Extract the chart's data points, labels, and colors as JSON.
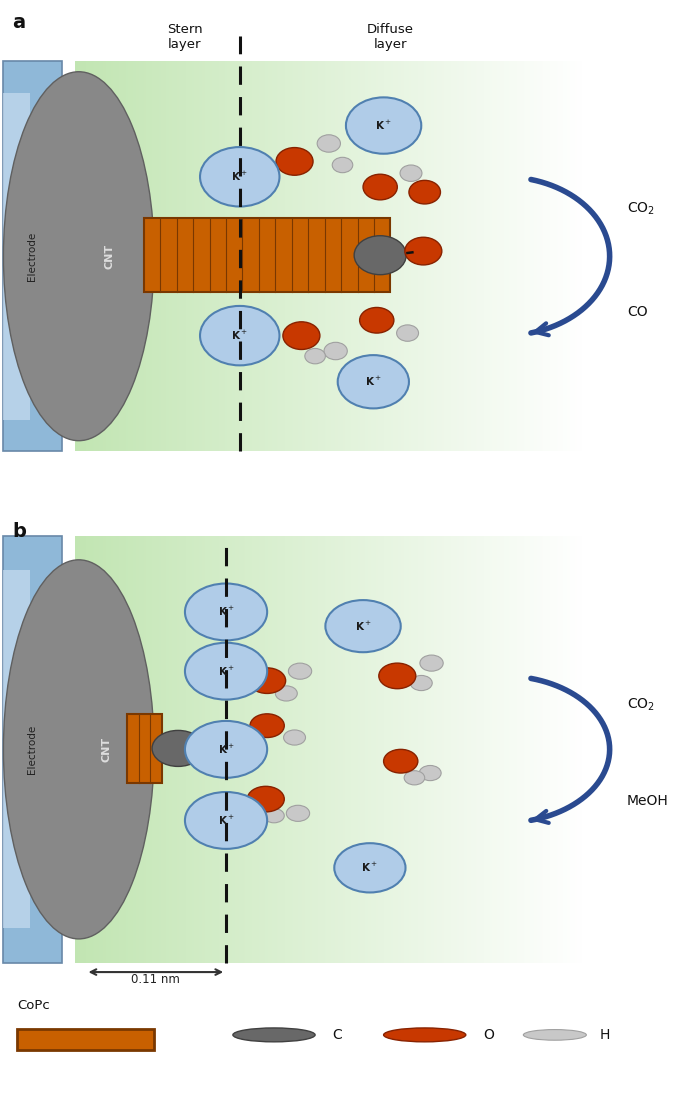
{
  "bg_color": "#ffffff",
  "electrode_color_light": "#c8dcf0",
  "electrode_color_mid": "#8fb8d8",
  "electrode_color_dark": "#6090b8",
  "gray_body_color": "#888888",
  "gray_body_edge": "#606060",
  "cnt_fill_color": "#c86000",
  "cnt_line_color": "#7a3800",
  "k_ion_fill": "#b0cce8",
  "k_ion_edge": "#5080b0",
  "carbon_color": "#686868",
  "carbon_edge": "#404040",
  "oxygen_color": "#c83800",
  "oxygen_edge": "#882200",
  "hydrogen_color": "#c8c8c8",
  "hydrogen_edge": "#a0a0a0",
  "arrow_color": "#2a4a90",
  "dashed_color": "#111111",
  "title_a": "a",
  "title_b": "b",
  "stern_label": "Stern\nlayer",
  "diffuse_label": "Diffuse\nlayer",
  "electrode_label": "Electrode",
  "cnt_label": "CNT",
  "co2_label": "CO$_2$",
  "co_label": "CO",
  "meoh_label": "MeOH",
  "copc_label": "CoPc",
  "c_label": "C",
  "o_label": "O",
  "h_label": "H",
  "dim_label": "0.11 nm"
}
